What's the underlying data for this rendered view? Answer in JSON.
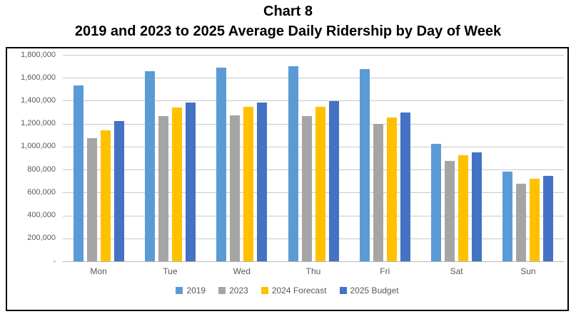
{
  "title": {
    "line1": "Chart 8",
    "line2": "2019 and 2023 to 2025 Average Daily Ridership by Day of Week"
  },
  "chart_data": {
    "type": "bar",
    "title": "Chart 8 — 2019 and 2023 to 2025 Average Daily Ridership by Day of Week",
    "categories": [
      "Mon",
      "Tue",
      "Wed",
      "Thu",
      "Fri",
      "Sat",
      "Sun"
    ],
    "series": [
      {
        "name": "2019",
        "color": "#5B9BD5",
        "values": [
          1535000,
          1660000,
          1690000,
          1700000,
          1675000,
          1025000,
          780000
        ]
      },
      {
        "name": "2023",
        "color": "#A5A5A5",
        "values": [
          1075000,
          1265000,
          1270000,
          1265000,
          1200000,
          875000,
          675000
        ]
      },
      {
        "name": "2024 Forecast",
        "color": "#FFC000",
        "values": [
          1145000,
          1340000,
          1345000,
          1350000,
          1255000,
          925000,
          720000
        ]
      },
      {
        "name": "2025 Budget",
        "color": "#4472C4",
        "values": [
          1220000,
          1385000,
          1385000,
          1395000,
          1300000,
          950000,
          745000
        ]
      }
    ],
    "y_axis": {
      "min": 0,
      "max": 1800000,
      "tick_interval": 200000,
      "tick_labels": [
        "-",
        "200,000",
        "400,000",
        "600,000",
        "800,000",
        "1,000,000",
        "1,200,000",
        "1,400,000",
        "1,600,000",
        "1,800,000"
      ]
    },
    "xlabel": "",
    "ylabel": "",
    "grid": "horizontal",
    "legend_position": "bottom"
  },
  "colors": {
    "gridline": "#C9C9C9",
    "axis_text": "#595959",
    "title_text": "#000000",
    "frame_border": "#000000",
    "background": "#FFFFFF"
  }
}
